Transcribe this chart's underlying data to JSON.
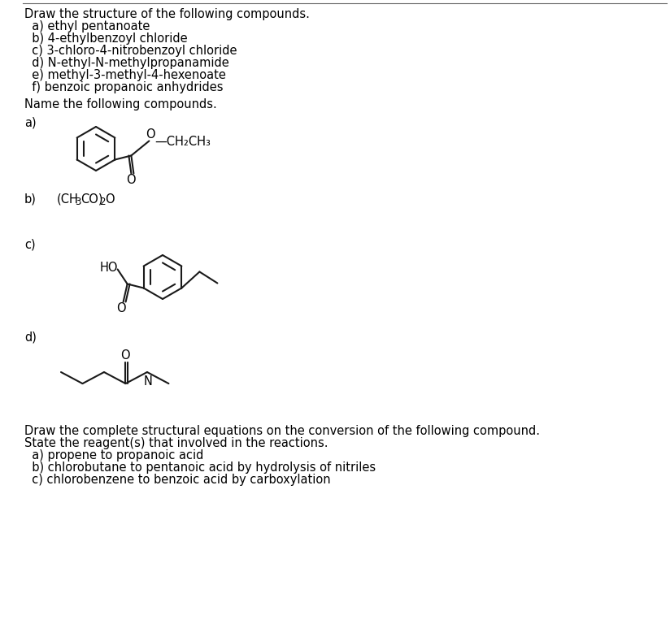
{
  "title_text": "Draw the structure of the following compounds.",
  "items_draw": [
    "  a) ethyl pentanoate",
    "  b) 4-ethylbenzoyl chloride",
    "  c) 3-chloro-4-nitrobenzoyl chloride",
    "  d) N-ethyl-N-methylpropanamide",
    "  e) methyl-3-methyl-4-hexenoate",
    "  f) benzoic propanoic anhydrides"
  ],
  "name_title": "Name the following compounds.",
  "label_a": "a)",
  "label_b": "b)",
  "label_c": "c)",
  "label_d": "d)",
  "b_formula_main": "(CH",
  "b_formula_sub": "3",
  "b_formula_end": "CO)",
  "b_formula_sub2": "2",
  "b_formula_o": "O",
  "bottom_title1": "Draw the complete structural equations on the conversion of the following compound.",
  "bottom_title2": "State the reagent(s) that involved in the reactions.",
  "bottom_items": [
    "  a) propene to propanoic acid",
    "  b) chlorobutane to pentanoic acid by hydrolysis of nitriles",
    "  c) chlorobenzene to benzoic acid by carboxylation"
  ],
  "text_color": "#000000",
  "bg_color": "#ffffff",
  "line_color": "#1a1a1a",
  "font_size": 10.5
}
